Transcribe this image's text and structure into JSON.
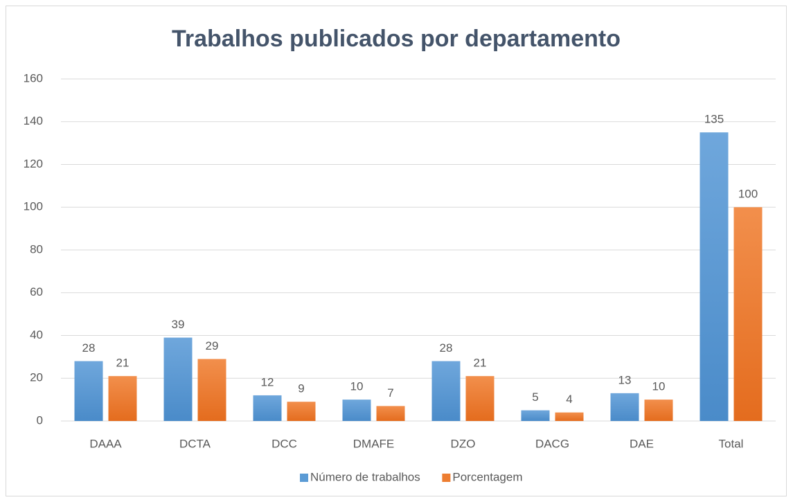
{
  "chart_data": {
    "type": "bar",
    "title": "Trabalhos publicados por departamento",
    "categories": [
      "DAAA",
      "DCTA",
      "DCC",
      "DMAFE",
      "DZO",
      "DACG",
      "DAE",
      "Total"
    ],
    "series": [
      {
        "name": "Número de trabalhos",
        "color": "#5b9bd5",
        "values": [
          28,
          39,
          12,
          10,
          28,
          5,
          13,
          135
        ]
      },
      {
        "name": "Porcentagem",
        "color": "#ed7d31",
        "values": [
          21,
          29,
          9,
          7,
          21,
          4,
          10,
          100
        ]
      }
    ],
    "ylim": [
      0,
      160
    ],
    "yticks": [
      0,
      20,
      40,
      60,
      80,
      100,
      120,
      140,
      160
    ],
    "grid": true,
    "legend": "bottom"
  }
}
